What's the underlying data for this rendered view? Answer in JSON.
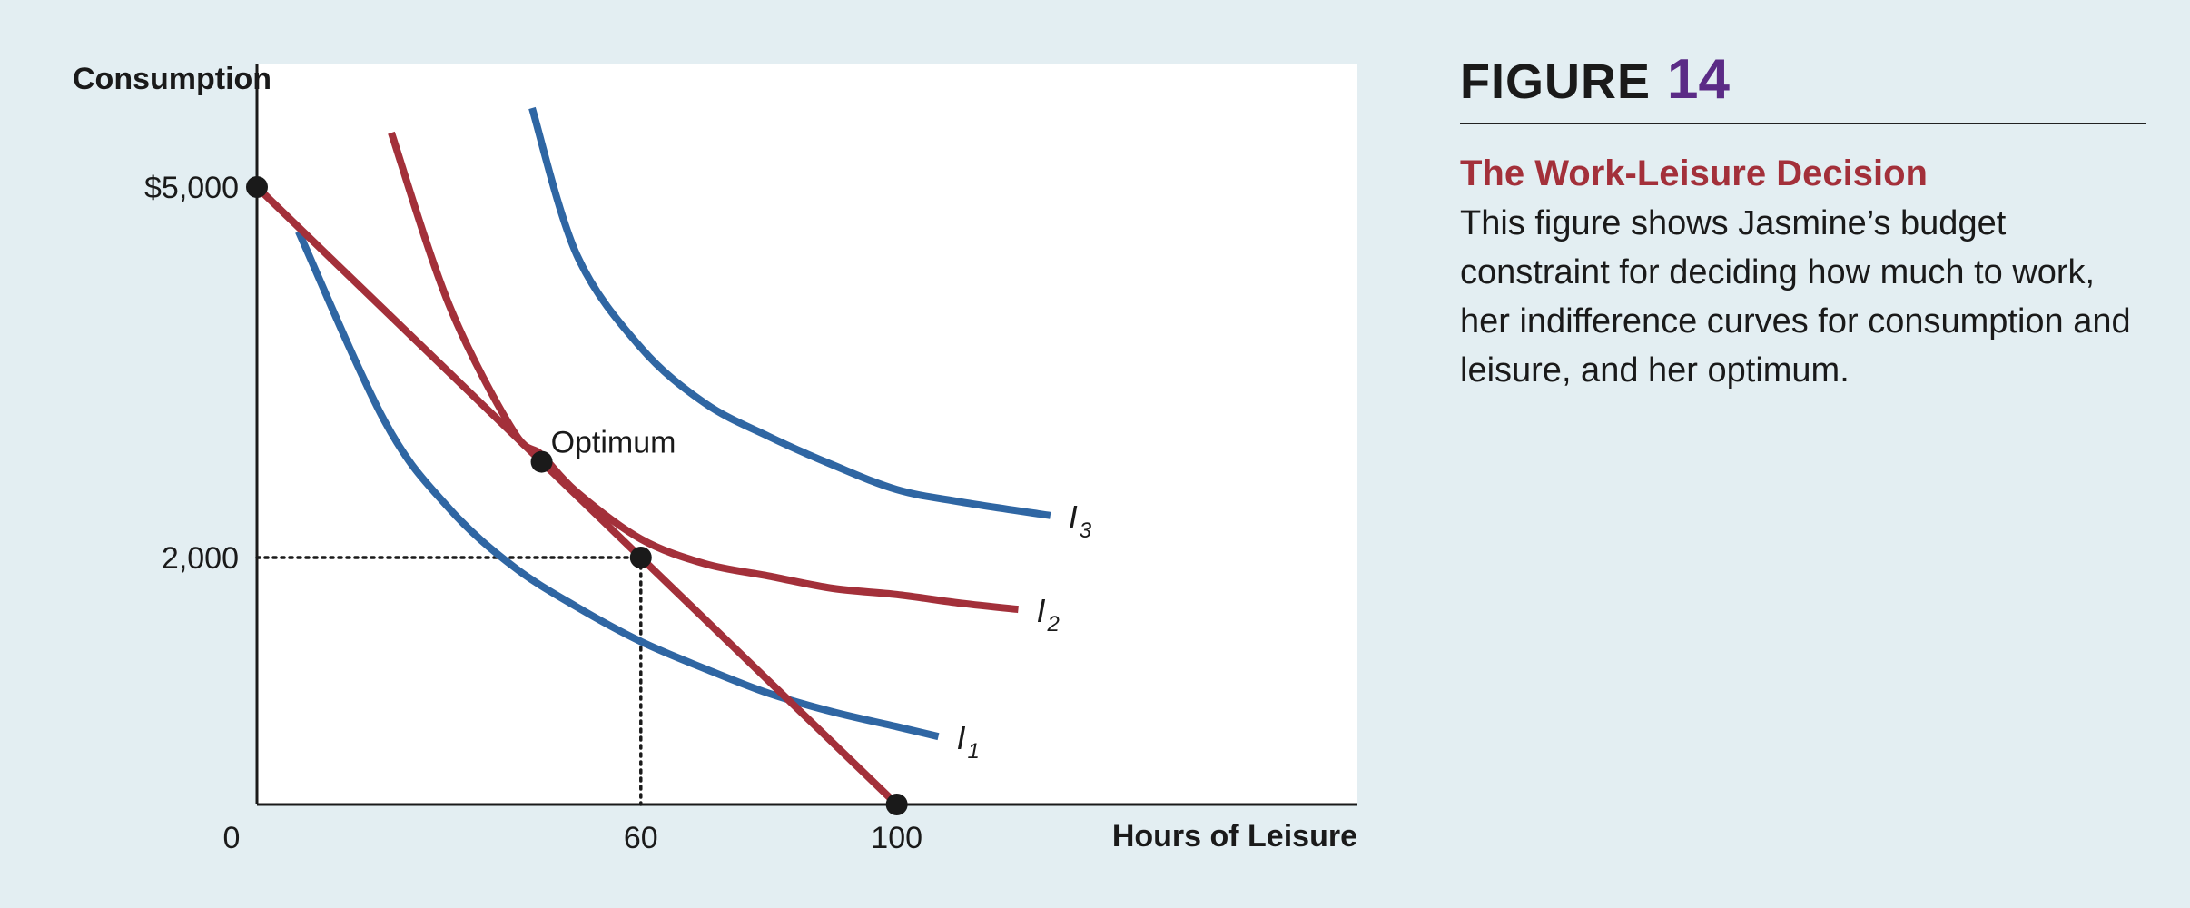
{
  "figure": {
    "label": "FIGURE",
    "number": "14",
    "title": "The Work-Leisure Decision",
    "description": "This figure shows Jasmine’s budget constraint for deciding how much to work, her indifference curves for consumption and leisure, and her optimum."
  },
  "chart_data": {
    "type": "line",
    "xlabel": "Hours of Leisure",
    "ylabel": "Consumption",
    "xlim": [
      0,
      172
    ],
    "ylim": [
      0,
      6000
    ],
    "x_ticks": [
      {
        "value": 0,
        "label": "0"
      },
      {
        "value": 60,
        "label": "60"
      },
      {
        "value": 100,
        "label": "100"
      }
    ],
    "y_ticks": [
      {
        "value": 5000,
        "label": "$5,000"
      },
      {
        "value": 2000,
        "label": "2,000"
      }
    ],
    "grid": false,
    "colors": {
      "blue": "#2f66a3",
      "red": "#a3303a",
      "point": "#1a1a1a"
    },
    "budget_line": {
      "points": [
        [
          0,
          5000
        ],
        [
          100,
          0
        ]
      ]
    },
    "indifference_curves": [
      {
        "label": "I",
        "subscript": "1",
        "color": "#2f66a3",
        "x_end": 106.5,
        "y_at_end": 550,
        "points": [
          [
            6.5,
            4640
          ],
          [
            20,
            3100
          ],
          [
            30,
            2400
          ],
          [
            40,
            1930
          ],
          [
            50,
            1600
          ],
          [
            60,
            1320
          ],
          [
            70,
            1100
          ],
          [
            80,
            900
          ],
          [
            90,
            750
          ],
          [
            100,
            630
          ],
          [
            106.5,
            550
          ]
        ]
      },
      {
        "label": "I",
        "subscript": "2",
        "color": "#a3303a",
        "x_end": 119,
        "y_at_end": 1580,
        "points": [
          [
            21,
            5440
          ],
          [
            30,
            4050
          ],
          [
            40,
            3030
          ],
          [
            44.5,
            2830
          ],
          [
            50,
            2530
          ],
          [
            60,
            2150
          ],
          [
            70,
            1950
          ],
          [
            80,
            1850
          ],
          [
            90,
            1750
          ],
          [
            100,
            1700
          ],
          [
            110,
            1630
          ],
          [
            119,
            1580
          ]
        ]
      },
      {
        "label": "I",
        "subscript": "3",
        "color": "#2f66a3",
        "x_end": 124,
        "y_at_end": 2340,
        "points": [
          [
            43,
            5640
          ],
          [
            50,
            4450
          ],
          [
            60,
            3700
          ],
          [
            70,
            3250
          ],
          [
            80,
            2980
          ],
          [
            90,
            2750
          ],
          [
            100,
            2550
          ],
          [
            110,
            2450
          ],
          [
            124,
            2340
          ]
        ]
      }
    ],
    "points": [
      {
        "x": 0,
        "y": 5000
      },
      {
        "x": 44.5,
        "y": 2775,
        "label": "Optimum"
      },
      {
        "x": 60,
        "y": 2000
      },
      {
        "x": 100,
        "y": 0
      }
    ],
    "reference_lines": [
      {
        "from": [
          0,
          2000
        ],
        "to": [
          60,
          2000
        ],
        "style": "dotted"
      },
      {
        "from": [
          60,
          2000
        ],
        "to": [
          60,
          0
        ],
        "style": "dotted"
      }
    ]
  }
}
